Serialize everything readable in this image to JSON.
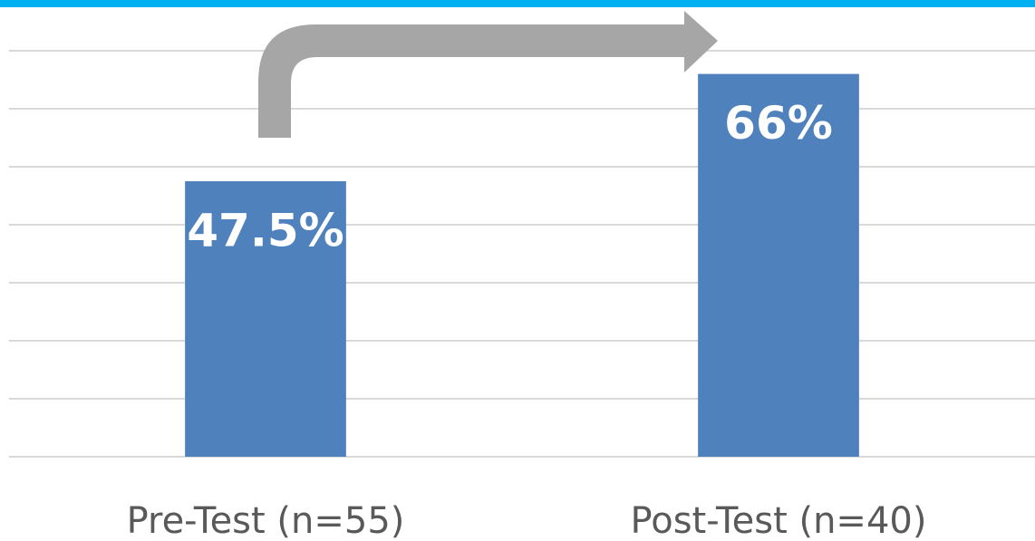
{
  "chart_data": {
    "type": "bar",
    "categories": [
      "Pre-Test (n=55)",
      "Post-Test (n=40)"
    ],
    "values": [
      47.5,
      66
    ],
    "value_labels": [
      "47.5%",
      "66%"
    ],
    "color": "#4f81bd",
    "ylim": [
      0,
      70
    ],
    "yticks": [
      0,
      10,
      20,
      30,
      40,
      50,
      60,
      70
    ],
    "grid": true
  }
}
